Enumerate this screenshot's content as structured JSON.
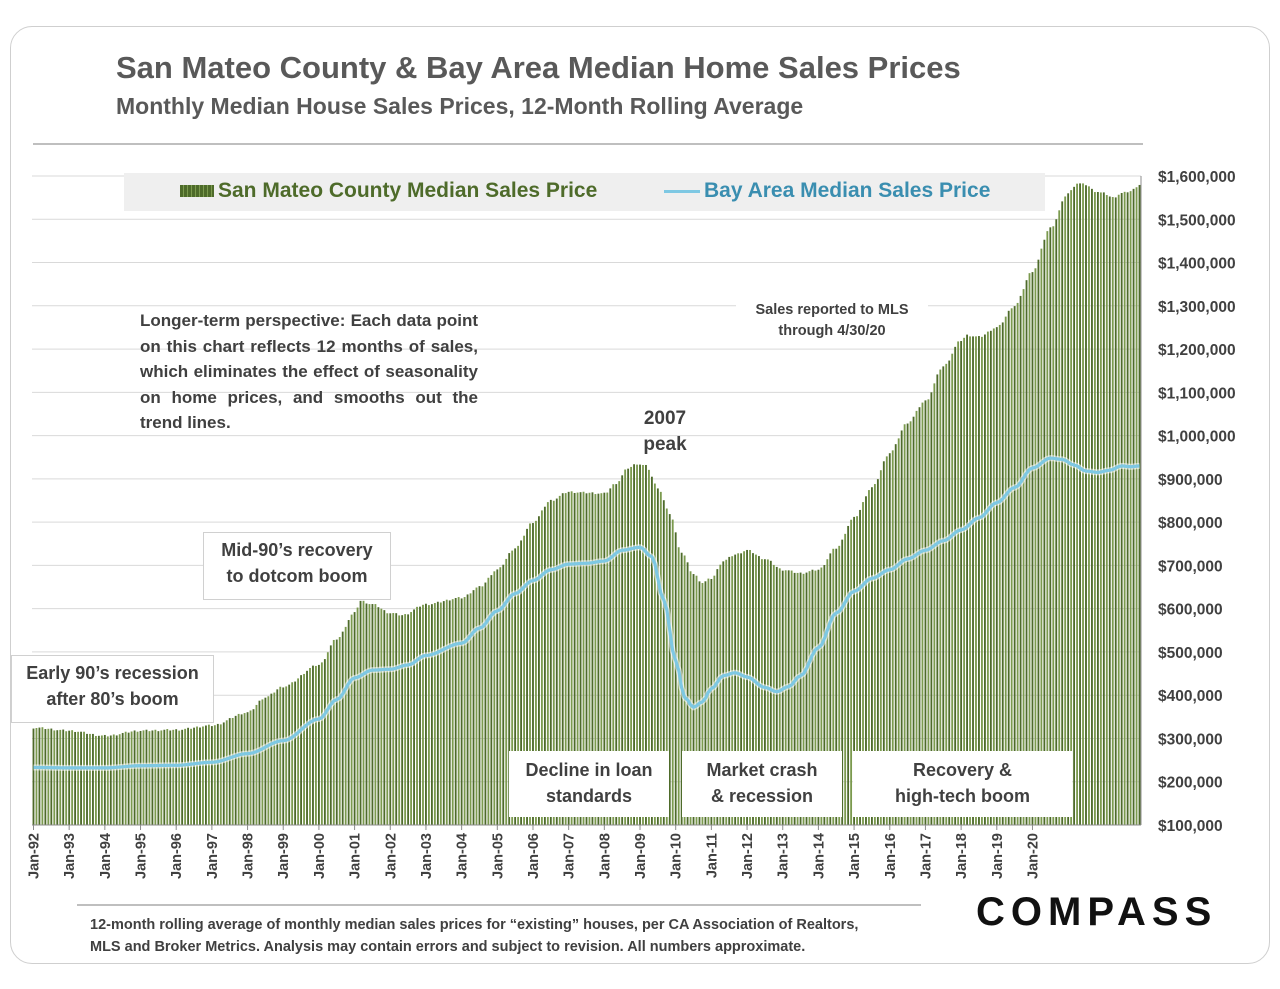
{
  "header": {
    "title": "San Mateo County & Bay Area Median Home Sales Prices",
    "subtitle": "Monthly Median House Sales Prices, 12-Month Rolling Average"
  },
  "legend": {
    "bar_label": "San Mateo County Median Sales Price",
    "line_label": "Bay Area Median Sales Price"
  },
  "annotations": {
    "perspective": "Longer-term perspective: Each data point on this chart reflects 12 months of sales, which eliminates the effect of seasonality on home prices, and smooths out the trend lines.",
    "mls_line1": "Sales reported to MLS",
    "mls_line2": "through 4/30/20",
    "peak_line1": "2007",
    "peak_line2": "peak",
    "early90s_line1": "Early 90’s recession",
    "early90s_line2": "after 80’s boom",
    "mid90s_line1": "Mid-90’s recovery",
    "mid90s_line2": "to dotcom boom",
    "decline_line1": "Decline in loan",
    "decline_line2": "standards",
    "crash_line1": "Market crash",
    "crash_line2": "& recession",
    "recovery_line1": "Recovery &",
    "recovery_line2": "high-tech boom"
  },
  "footnote": {
    "line1": "12-month rolling average of monthly median sales prices for “existing” houses, per CA Association of Realtors,",
    "line2": "MLS and Broker Metrics.  Analysis may contain errors and subject to revision. All numbers approximate."
  },
  "brand": {
    "logo_text": "COMPASS"
  },
  "colors": {
    "bar": "#4e6b2a",
    "bar_light": "#7b9a4e",
    "line": "#7ec8e3",
    "grid": "#d9d9d9",
    "text": "#404040"
  },
  "chart_data": {
    "type": "bar",
    "title": "San Mateo County & Bay Area Median Home Sales Prices",
    "xlabel": "",
    "ylabel": "",
    "ylim": [
      100000,
      1600000
    ],
    "y_ticks": [
      100000,
      200000,
      300000,
      400000,
      500000,
      600000,
      700000,
      800000,
      900000,
      1000000,
      1100000,
      1200000,
      1300000,
      1400000,
      1500000,
      1600000
    ],
    "y_tick_labels": [
      "$100,000",
      "$200,000",
      "$300,000",
      "$400,000",
      "$500,000",
      "$600,000",
      "$700,000",
      "$800,000",
      "$900,000",
      "$1,000,000",
      "$1,100,000",
      "$1,200,000",
      "$1,300,000",
      "$1,400,000",
      "$1,500,000",
      "$1,600,000"
    ],
    "x_tick_labels": [
      "Jan-92",
      "Jan-93",
      "Jan-94",
      "Jan-95",
      "Jan-96",
      "Jan-97",
      "Jan-98",
      "Jan-99",
      "Jan-00",
      "Jan-01",
      "Jan-02",
      "Jan-03",
      "Jan-04",
      "Jan-05",
      "Jan-06",
      "Jan-07",
      "Jan-08",
      "Jan-09",
      "Jan-10",
      "Jan-11",
      "Jan-12",
      "Jan-13",
      "Jan-14",
      "Jan-15",
      "Jan-16",
      "Jan-17",
      "Jan-18",
      "Jan-19",
      "Jan-20"
    ],
    "x_start": "1992-01",
    "x_end": "2020-04",
    "grid": true,
    "legend_position": "top",
    "series": [
      {
        "name": "San Mateo County Median Sales Price",
        "type": "bar",
        "anchors": [
          [
            0,
            325000
          ],
          [
            12,
            318000
          ],
          [
            24,
            306000
          ],
          [
            36,
            318000
          ],
          [
            48,
            320000
          ],
          [
            60,
            330000
          ],
          [
            72,
            360000
          ],
          [
            78,
            395000
          ],
          [
            84,
            420000
          ],
          [
            96,
            470000
          ],
          [
            102,
            530000
          ],
          [
            108,
            590000
          ],
          [
            110,
            618000
          ],
          [
            114,
            610000
          ],
          [
            120,
            590000
          ],
          [
            124,
            585000
          ],
          [
            132,
            610000
          ],
          [
            144,
            625000
          ],
          [
            150,
            650000
          ],
          [
            156,
            690000
          ],
          [
            162,
            740000
          ],
          [
            168,
            800000
          ],
          [
            174,
            850000
          ],
          [
            180,
            870000
          ],
          [
            186,
            868000
          ],
          [
            192,
            866000
          ],
          [
            196,
            890000
          ],
          [
            200,
            925000
          ],
          [
            203,
            935000
          ],
          [
            206,
            930000
          ],
          [
            210,
            880000
          ],
          [
            214,
            820000
          ],
          [
            218,
            730000
          ],
          [
            222,
            680000
          ],
          [
            225,
            660000
          ],
          [
            228,
            670000
          ],
          [
            232,
            710000
          ],
          [
            236,
            725000
          ],
          [
            240,
            735000
          ],
          [
            246,
            715000
          ],
          [
            252,
            690000
          ],
          [
            258,
            682000
          ],
          [
            264,
            690000
          ],
          [
            270,
            740000
          ],
          [
            276,
            810000
          ],
          [
            282,
            880000
          ],
          [
            288,
            960000
          ],
          [
            294,
            1030000
          ],
          [
            300,
            1080000
          ],
          [
            306,
            1160000
          ],
          [
            312,
            1220000
          ],
          [
            314,
            1232000
          ],
          [
            318,
            1228000
          ],
          [
            324,
            1250000
          ],
          [
            330,
            1300000
          ],
          [
            336,
            1380000
          ],
          [
            342,
            1480000
          ],
          [
            348,
            1560000
          ],
          [
            351,
            1583000
          ],
          [
            354,
            1580000
          ],
          [
            357,
            1565000
          ],
          [
            360,
            1560000
          ],
          [
            363,
            1550000
          ],
          [
            366,
            1560000
          ],
          [
            369,
            1565000
          ],
          [
            372,
            1580000
          ]
        ]
      },
      {
        "name": "Bay Area Median Sales Price",
        "type": "line",
        "anchors": [
          [
            0,
            233000
          ],
          [
            12,
            232000
          ],
          [
            24,
            232000
          ],
          [
            36,
            237000
          ],
          [
            48,
            238000
          ],
          [
            60,
            245000
          ],
          [
            72,
            265000
          ],
          [
            84,
            295000
          ],
          [
            96,
            345000
          ],
          [
            102,
            390000
          ],
          [
            108,
            440000
          ],
          [
            114,
            458000
          ],
          [
            120,
            460000
          ],
          [
            126,
            470000
          ],
          [
            132,
            492000
          ],
          [
            144,
            520000
          ],
          [
            150,
            555000
          ],
          [
            156,
            595000
          ],
          [
            162,
            635000
          ],
          [
            168,
            665000
          ],
          [
            174,
            690000
          ],
          [
            180,
            703000
          ],
          [
            186,
            705000
          ],
          [
            192,
            710000
          ],
          [
            198,
            735000
          ],
          [
            204,
            742000
          ],
          [
            208,
            720000
          ],
          [
            212,
            620000
          ],
          [
            216,
            480000
          ],
          [
            219,
            395000
          ],
          [
            222,
            372000
          ],
          [
            225,
            385000
          ],
          [
            228,
            415000
          ],
          [
            232,
            445000
          ],
          [
            236,
            452000
          ],
          [
            240,
            442000
          ],
          [
            246,
            418000
          ],
          [
            250,
            408000
          ],
          [
            254,
            420000
          ],
          [
            258,
            445000
          ],
          [
            264,
            510000
          ],
          [
            270,
            590000
          ],
          [
            276,
            640000
          ],
          [
            282,
            670000
          ],
          [
            288,
            690000
          ],
          [
            294,
            715000
          ],
          [
            300,
            735000
          ],
          [
            306,
            757000
          ],
          [
            312,
            782000
          ],
          [
            318,
            810000
          ],
          [
            324,
            845000
          ],
          [
            330,
            880000
          ],
          [
            336,
            925000
          ],
          [
            342,
            948000
          ],
          [
            346,
            945000
          ],
          [
            350,
            932000
          ],
          [
            354,
            918000
          ],
          [
            358,
            915000
          ],
          [
            362,
            920000
          ],
          [
            366,
            930000
          ],
          [
            369,
            928000
          ],
          [
            372,
            930000
          ]
        ]
      }
    ]
  }
}
